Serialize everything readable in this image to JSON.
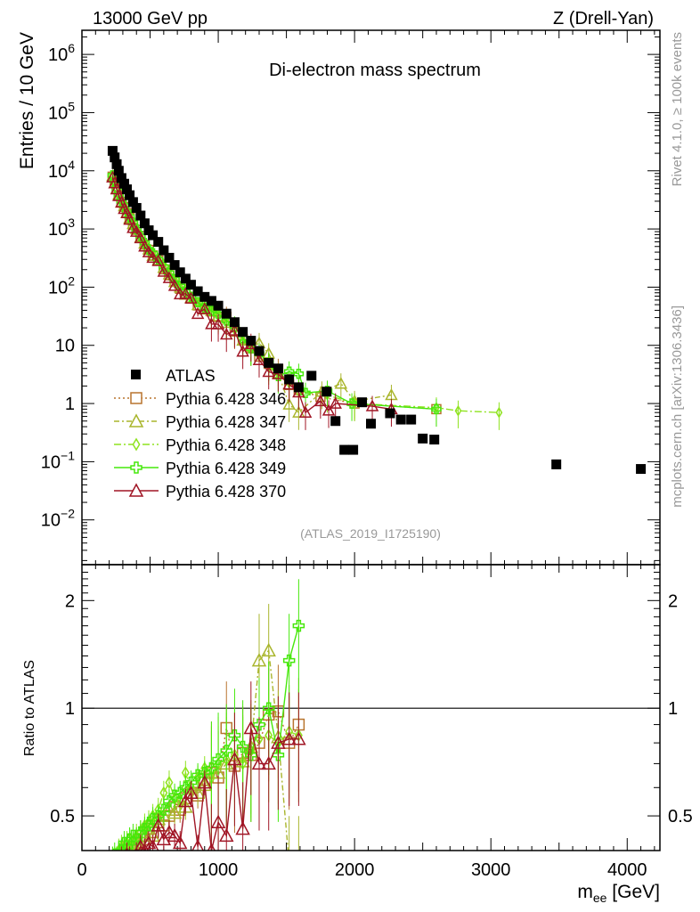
{
  "header": {
    "left": "13000 GeV pp",
    "right": "Z (Drell-Yan)"
  },
  "side_labels": {
    "rivet": "Rivet 4.1.0, ≥ 100k events",
    "mcplots": "mcplots.cern.ch [arXiv:1306.3436]"
  },
  "watermark": "(ATLAS_2019_I1725190)",
  "chart_data": [
    {
      "type": "scatter",
      "title": "Di-electron mass spectrum",
      "xlabel": "m_ee [GeV]",
      "xlabel_main": "m",
      "xlabel_sub": "ee",
      "xlabel_unit": " [GeV]",
      "ylabel": "Entries / 10 GeV",
      "yscale": "log",
      "xlim": [
        0,
        4240
      ],
      "ylim": [
        0.0017,
        2600000
      ],
      "yticks": [
        {
          "v": 1000000,
          "base": "10",
          "exp": "6"
        },
        {
          "v": 100000,
          "base": "10",
          "exp": "5"
        },
        {
          "v": 10000,
          "base": "10",
          "exp": "4"
        },
        {
          "v": 1000,
          "base": "10",
          "exp": "3"
        },
        {
          "v": 100,
          "base": "10",
          "exp": "2"
        },
        {
          "v": 10,
          "base": "10",
          "exp": ""
        },
        {
          "v": 1,
          "base": "1",
          "exp": ""
        },
        {
          "v": 0.1,
          "base": "10",
          "exp": "−1"
        },
        {
          "v": 0.01,
          "base": "10",
          "exp": "−2"
        }
      ],
      "legend_position": "left-middle",
      "data_series": {
        "name": "ATLAS",
        "color": "#000000",
        "x": [
          225,
          240,
          255,
          270,
          290,
          310,
          330,
          350,
          375,
          400,
          430,
          460,
          490,
          520,
          560,
          600,
          640,
          680,
          720,
          760,
          800,
          850,
          900,
          950,
          1000,
          1060,
          1120,
          1180,
          1240,
          1300,
          1370,
          1440,
          1520,
          1590,
          1684,
          1795,
          1860,
          1925,
          1990,
          2055,
          2120,
          2260,
          2340,
          2415,
          2500,
          2585,
          3480,
          4100
        ],
        "y": [
          22000,
          17000,
          13000,
          10000,
          7500,
          6000,
          4800,
          3800,
          2900,
          2300,
          1700,
          1250,
          950,
          780,
          600,
          430,
          320,
          240,
          180,
          140,
          110,
          85,
          68,
          58,
          48,
          35,
          25,
          17,
          12,
          8,
          5,
          4,
          2.6,
          1.9,
          3,
          1.6,
          0.5,
          0.16,
          0.16,
          1.05,
          0.45,
          0.68,
          0.53,
          0.53,
          0.25,
          0.24,
          0.09,
          0.075
        ]
      },
      "mc_series": [
        {
          "name": "Pythia 6.428 346",
          "color": "#b8742e",
          "marker": "square",
          "dash": "2,3",
          "ratio": [
            0.36,
            0.37,
            0.38,
            0.37,
            0.39,
            0.4,
            0.39,
            0.41,
            0.4,
            0.42,
            0.44,
            0.43,
            0.46,
            0.45,
            0.48,
            0.47,
            0.5,
            0.53,
            0.52,
            0.56,
            0.58,
            0.57,
            0.63,
            0.66,
            0.64,
            0.88,
            0.69,
            0.75,
            0.74,
            0.8,
            0.96,
            0.98,
            0.8,
            0.9
          ],
          "tail": [
            [
              1750,
              1.3
            ],
            [
              2000,
              1.0
            ],
            [
              2600,
              0.8
            ]
          ]
        },
        {
          "name": "Pythia 6.428 347",
          "color": "#a9b52c",
          "marker": "triangle",
          "dash": "6,3,2,3",
          "ratio": [
            0.37,
            0.36,
            0.38,
            0.39,
            0.38,
            0.41,
            0.4,
            0.4,
            0.42,
            0.43,
            0.42,
            0.45,
            0.47,
            0.44,
            0.49,
            0.5,
            0.52,
            0.51,
            0.55,
            0.53,
            0.6,
            0.58,
            0.61,
            0.68,
            0.66,
            0.7,
            0.72,
            0.71,
            0.78,
            1.36,
            1.45,
            0.83,
            0.37,
            0.37
          ],
          "tail": [
            [
              1760,
              1.6
            ],
            [
              1900,
              2.2
            ],
            [
              2000,
              1.1
            ],
            [
              2270,
              1.4
            ]
          ]
        },
        {
          "name": "Pythia 6.428 348",
          "color": "#8fe31f",
          "marker": "diamond",
          "dash": "8,3,2,3",
          "ratio": [
            0.38,
            0.38,
            0.37,
            0.4,
            0.41,
            0.4,
            0.42,
            0.43,
            0.41,
            0.44,
            0.45,
            0.47,
            0.48,
            0.5,
            0.52,
            0.58,
            0.62,
            0.56,
            0.55,
            0.66,
            0.6,
            0.64,
            0.68,
            0.64,
            0.7,
            0.72,
            0.74,
            0.7,
            0.76,
            0.82,
            0.84,
            0.8,
            0.86,
            0.84
          ],
          "tail": [
            [
              1800,
              1.4
            ],
            [
              2000,
              1.0
            ],
            [
              2600,
              0.85
            ],
            [
              2760,
              0.75
            ],
            [
              3060,
              0.7
            ]
          ]
        },
        {
          "name": "Pythia 6.428 349",
          "color": "#45e80a",
          "marker": "cross",
          "dash": "",
          "ratio": [
            0.38,
            0.39,
            0.38,
            0.39,
            0.4,
            0.42,
            0.41,
            0.43,
            0.44,
            0.43,
            0.45,
            0.46,
            0.47,
            0.49,
            0.5,
            0.52,
            0.55,
            0.57,
            0.58,
            0.6,
            0.62,
            0.65,
            0.66,
            0.68,
            0.72,
            0.76,
            0.84,
            0.78,
            0.74,
            0.9,
            1.0,
            0.74,
            1.36,
            1.7
          ],
          "tail": [
            [
              1640,
              1.52
            ],
            [
              1800,
              1.65
            ],
            [
              1980,
              1.0
            ],
            [
              2600,
              0.8
            ]
          ]
        },
        {
          "name": "Pythia 6.428 370",
          "color": "#a01525",
          "marker": "triangle",
          "dash": "",
          "ratio": [
            0.35,
            0.36,
            0.37,
            0.37,
            0.38,
            0.37,
            0.39,
            0.38,
            0.36,
            0.39,
            0.41,
            0.4,
            0.42,
            0.41,
            0.47,
            0.43,
            0.45,
            0.44,
            0.42,
            0.55,
            0.58,
            0.41,
            0.62,
            0.4,
            0.48,
            0.44,
            0.72,
            0.46,
            0.88,
            0.7,
            0.7,
            0.8,
            0.82,
            0.82
          ],
          "tail": [
            [
              1640,
              0.7
            ],
            [
              1750,
              1.1
            ],
            [
              1810,
              0.76
            ],
            [
              1860,
              1.0
            ],
            [
              2130,
              0.9
            ],
            [
              2270,
              0.8
            ]
          ]
        }
      ]
    },
    {
      "type": "scatter",
      "ylabel": "Ratio to ATLAS",
      "yscale": "log",
      "ylim": [
        0.4,
        2.52
      ],
      "yticks": [
        {
          "v": 2,
          "label": "2"
        },
        {
          "v": 1,
          "label": "1"
        },
        {
          "v": 0.5,
          "label": "0.5"
        }
      ],
      "xticks": [
        {
          "v": 0,
          "label": "0"
        },
        {
          "v": 1000,
          "label": "1000"
        },
        {
          "v": 2000,
          "label": "2000"
        },
        {
          "v": 3000,
          "label": "3000"
        },
        {
          "v": 4000,
          "label": "4000"
        }
      ]
    }
  ]
}
